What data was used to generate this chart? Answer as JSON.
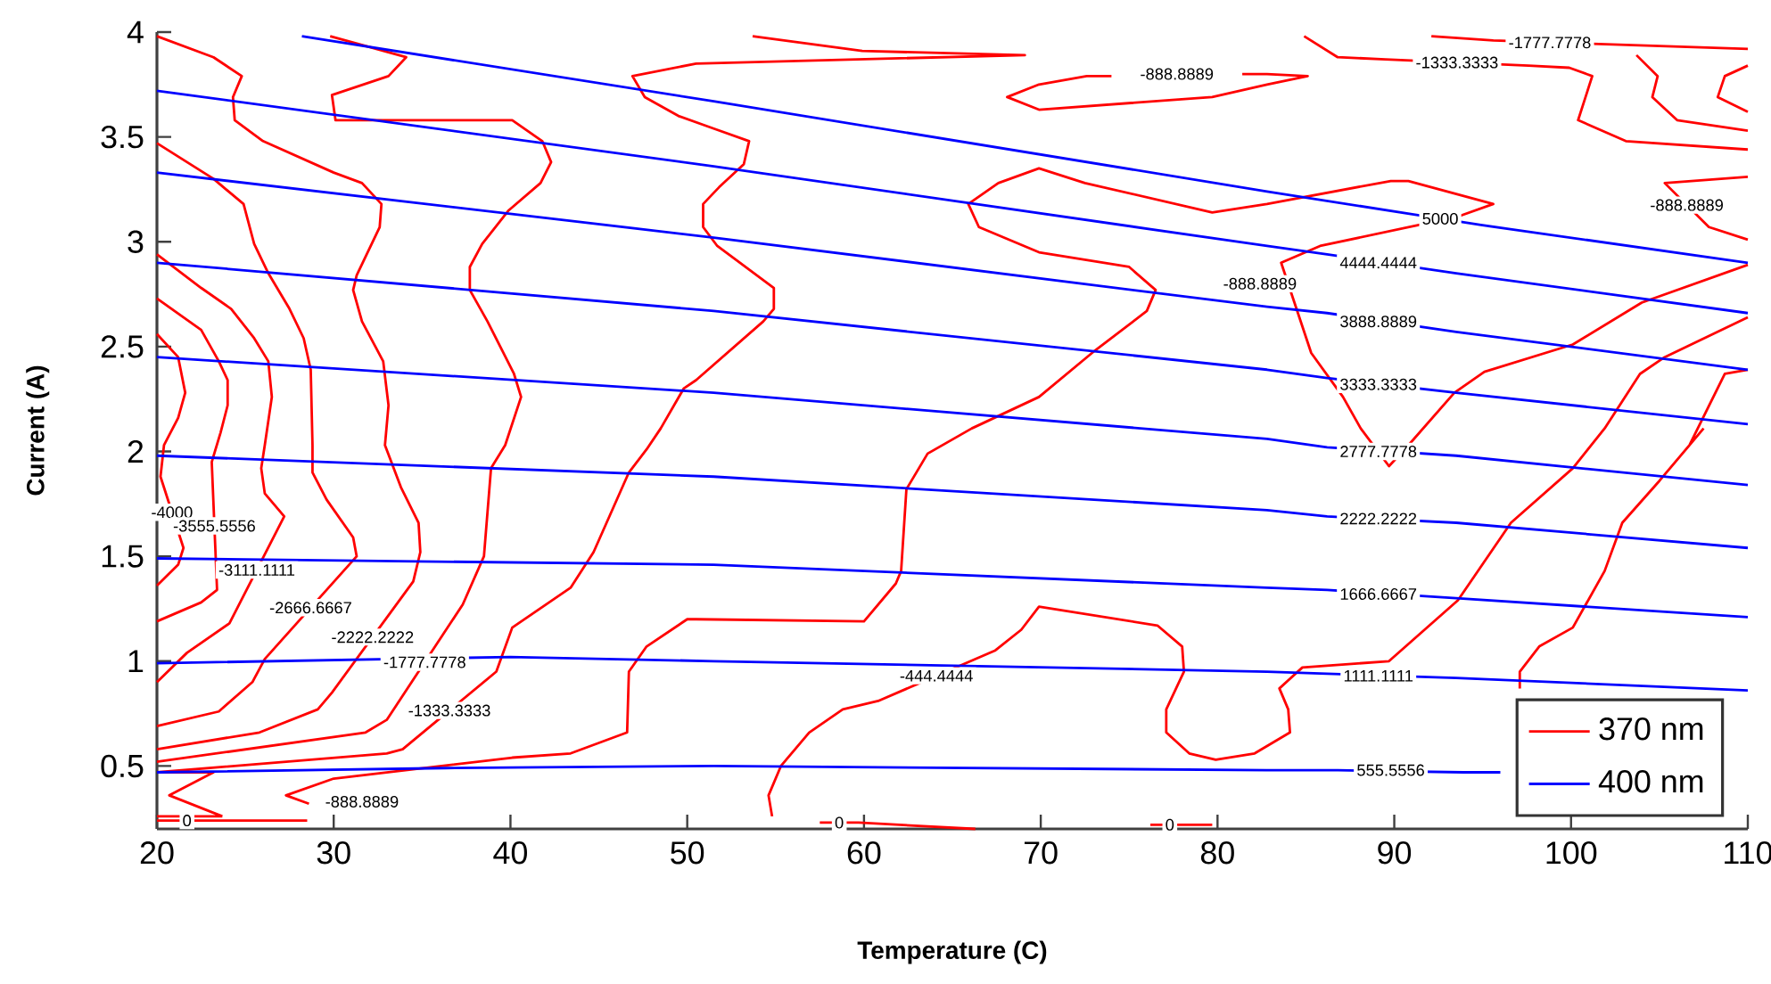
{
  "chart_data": {
    "type": "line",
    "xlabel": "Temperature (C)",
    "ylabel": "Current (A)",
    "xlim": [
      20,
      110
    ],
    "ylim": [
      0.2,
      4
    ],
    "xticks": [
      20,
      30,
      40,
      50,
      60,
      70,
      80,
      90,
      100,
      110
    ],
    "yticks": [
      0.5,
      1,
      1.5,
      2,
      2.5,
      3,
      3.5,
      4
    ],
    "legend": "bottom right",
    "marker": "none",
    "line_style": "solid",
    "grid": false,
    "series": [
      {
        "name": "370 nm",
        "color": "#ff0000",
        "x": [
          20.0,
          21.2,
          21.6,
          21.2,
          20.4,
          20.2,
          21.5,
          21.2,
          20.0,
          null,
          20.0,
          22.5,
          23.5,
          24.0,
          24.0,
          23.6,
          23.1,
          23.4,
          22.5,
          20.0,
          null,
          20.0,
          22.5,
          24.2,
          25.5,
          26.3,
          26.5,
          26.1,
          25.9,
          26.1,
          27.2,
          24.1,
          21.7,
          20.0,
          null,
          20.0,
          23.2,
          24.9,
          25.5,
          26.3,
          27.5,
          28.3,
          28.7,
          28.8,
          28.8,
          29.6,
          31.1,
          31.3,
          26.1,
          25.4,
          23.5,
          20.0,
          null,
          20.0,
          23.2,
          24.8,
          24.3,
          24.4,
          26.0,
          30.0,
          31.6,
          32.7,
          32.6,
          31.3,
          31.1,
          31.6,
          32.8,
          33.1,
          32.9,
          33.8,
          34.8,
          34.9,
          34.5,
          29.9,
          29.1,
          25.8,
          20.0,
          null,
          29.8,
          34.1,
          33.1,
          29.9,
          30.1,
          40.1,
          41.8,
          42.3,
          41.7,
          39.9,
          38.4,
          37.7,
          37.7,
          38.7,
          40.2,
          40.6,
          39.7,
          38.9,
          38.5,
          37.3,
          33.0,
          31.8,
          20.0,
          null,
          53.7,
          59.9,
          69.1,
          50.5,
          46.9,
          47.6,
          49.5,
          51.5,
          53.5,
          53.2,
          51.8,
          50.9,
          50.9,
          51.7,
          54.9,
          54.9,
          54.3,
          50.5,
          49.8,
          48.5,
          47.7,
          46.7,
          44.7,
          43.4,
          40.1,
          39.2,
          33.9,
          33.0,
          20.0,
          null,
          74.0,
          72.6,
          69.9,
          68.1,
          69.9,
          79.7,
          82.8,
          85.1,
          82.8,
          81.4,
          null,
          84.9,
          86.8,
          89.5,
          97.6,
          99.9,
          101.2,
          100.4,
          103.1,
          110.0,
          null,
          92.1,
          95.6,
          110.0,
          null,
          103.7,
          104.9,
          104.6,
          106.0,
          110.0,
          null,
          110.0,
          108.7,
          108.3,
          110.0,
          null,
          110.0,
          105.3,
          107.8,
          110.0,
          null,
          110.0,
          104.0,
          100.1,
          95.1,
          93.4,
          90.8,
          89.7,
          88.1,
          87.1,
          85.3,
          83.6,
          85.8,
          93.6,
          95.6,
          90.8,
          89.8,
          82.8,
          79.7,
          72.5,
          69.9,
          67.6,
          65.9,
          66.5,
          69.9,
          75.0,
          76.5,
          76.0,
          72.9,
          69.9,
          66.1,
          63.6,
          62.4,
          62.1,
          61.8,
          60.0,
          50.5,
          50.0,
          47.7,
          46.7,
          46.6,
          43.4,
          40.1,
          30.0,
          27.3,
          28.6,
          null,
          20.0,
          23.2,
          20.7,
          23.7,
          null,
          54.8,
          54.6,
          55.3,
          56.9,
          58.8,
          60.8,
          67.4,
          68.9,
          69.9,
          76.6,
          78.0,
          78.1,
          77.1,
          77.1,
          78.4,
          79.9,
          82.1,
          84.1,
          84.0,
          83.5,
          84.8,
          89.7,
          93.6,
          96.6,
          100.1,
          101.9,
          103.9,
          105.3,
          110.0,
          null,
          107.5,
          105.0,
          102.9,
          101.9,
          100.1,
          98.2,
          97.1,
          97.1,
          null,
          106.7,
          108.7,
          110.0,
          null,
          57.5,
          59.7,
          66.3,
          null,
          76.2,
          79.7,
          null,
          20.0,
          23.7,
          null,
          20.0,
          28.5
        ],
        "values": [
          2.56,
          2.45,
          2.28,
          2.16,
          2.03,
          1.88,
          1.54,
          1.46,
          1.36,
          null,
          2.73,
          2.58,
          2.43,
          2.34,
          2.22,
          2.09,
          1.95,
          1.34,
          1.28,
          1.19,
          null,
          2.94,
          2.78,
          2.68,
          2.54,
          2.43,
          2.26,
          2.03,
          1.92,
          1.8,
          1.69,
          1.18,
          1.04,
          0.9,
          null,
          3.47,
          3.3,
          3.18,
          2.99,
          2.85,
          2.68,
          2.54,
          2.39,
          2.03,
          1.9,
          1.77,
          1.59,
          1.5,
          1.01,
          0.9,
          0.76,
          0.69,
          null,
          3.98,
          3.88,
          3.79,
          3.69,
          3.58,
          3.48,
          3.33,
          3.28,
          3.18,
          3.07,
          2.84,
          2.77,
          2.62,
          2.43,
          2.22,
          2.03,
          1.83,
          1.66,
          1.52,
          1.38,
          0.85,
          0.77,
          0.66,
          0.58,
          null,
          3.98,
          3.88,
          3.79,
          3.7,
          3.58,
          3.58,
          3.48,
          3.38,
          3.28,
          3.15,
          2.99,
          2.88,
          2.77,
          2.62,
          2.37,
          2.26,
          2.03,
          1.92,
          1.5,
          1.27,
          0.72,
          0.66,
          0.52,
          null,
          3.98,
          3.91,
          3.89,
          3.85,
          3.79,
          3.69,
          3.6,
          3.54,
          3.48,
          3.37,
          3.26,
          3.18,
          3.07,
          2.98,
          2.78,
          2.68,
          2.62,
          2.34,
          2.3,
          2.11,
          2.01,
          1.9,
          1.52,
          1.35,
          1.16,
          0.95,
          0.58,
          0.56,
          0.47,
          null,
          3.79,
          3.79,
          3.75,
          3.69,
          3.63,
          3.69,
          3.75,
          3.79,
          3.8,
          3.8,
          null,
          3.98,
          3.88,
          3.87,
          3.84,
          3.83,
          3.79,
          3.58,
          3.48,
          3.44,
          null,
          3.98,
          3.96,
          3.92,
          null,
          3.89,
          3.79,
          3.69,
          3.58,
          3.53,
          null,
          3.84,
          3.79,
          3.69,
          3.62,
          null,
          3.31,
          3.28,
          3.07,
          3.01,
          null,
          2.89,
          2.71,
          2.51,
          2.38,
          2.28,
          2.03,
          1.93,
          2.11,
          2.26,
          2.47,
          2.9,
          2.98,
          3.12,
          3.18,
          3.29,
          3.29,
          3.18,
          3.14,
          3.28,
          3.35,
          3.28,
          3.18,
          3.07,
          2.95,
          2.88,
          2.77,
          2.67,
          2.47,
          2.26,
          2.11,
          1.99,
          1.82,
          1.43,
          1.37,
          1.19,
          1.2,
          1.2,
          1.07,
          0.95,
          0.66,
          0.56,
          0.54,
          0.44,
          0.36,
          0.32,
          null,
          0.47,
          0.47,
          0.36,
          0.26,
          null,
          0.26,
          0.36,
          0.5,
          0.66,
          0.77,
          0.81,
          1.05,
          1.15,
          1.26,
          1.17,
          1.07,
          0.95,
          0.77,
          0.66,
          0.56,
          0.53,
          0.56,
          0.66,
          0.77,
          0.87,
          0.97,
          1.0,
          1.29,
          1.66,
          1.92,
          2.11,
          2.37,
          2.45,
          2.64,
          null,
          2.11,
          1.86,
          1.66,
          1.43,
          1.16,
          1.07,
          0.95,
          0.87,
          null,
          2.03,
          2.37,
          2.39,
          null,
          0.23,
          0.23,
          0.2,
          null,
          0.22,
          0.22,
          null,
          0.26,
          0.26,
          null,
          0.24,
          0.24
        ]
      },
      {
        "name": "400 nm",
        "color": "#0000ff",
        "x": [
          28.2,
          51.5,
          82.8,
          91.1,
          94.9,
          110.0
        ],
        "values": [
          3.98,
          3.67,
          3.24,
          3.13,
          3.08,
          2.9
        ]
      },
      {
        "color": "#0000ff",
        "x": [
          20.0,
          51.5,
          82.8,
          86.2,
          93.5,
          110.0
        ],
        "values": [
          3.72,
          3.36,
          2.98,
          2.94,
          2.85,
          2.66
        ]
      },
      {
        "color": "#0000ff",
        "x": [
          20.0,
          51.5,
          82.8,
          86.2,
          93.5,
          110.0
        ],
        "values": [
          3.33,
          3.02,
          2.69,
          2.66,
          2.57,
          2.39
        ]
      },
      {
        "color": "#0000ff",
        "x": [
          20.0,
          51.5,
          82.8,
          86.2,
          93.5,
          110.0
        ],
        "values": [
          2.9,
          2.67,
          2.39,
          2.35,
          2.28,
          2.13
        ]
      },
      {
        "color": "#0000ff",
        "x": [
          20.0,
          51.5,
          82.8,
          86.2,
          93.5,
          110.0
        ],
        "values": [
          2.45,
          2.28,
          2.06,
          2.02,
          1.98,
          1.84
        ]
      },
      {
        "color": "#0000ff",
        "x": [
          20.0,
          51.5,
          82.8,
          86.2,
          93.5,
          110.0
        ],
        "values": [
          1.98,
          1.88,
          1.72,
          1.69,
          1.66,
          1.54
        ]
      },
      {
        "color": "#0000ff",
        "x": [
          20.0,
          51.5,
          82.8,
          86.2,
          93.5,
          110.0
        ],
        "values": [
          1.49,
          1.46,
          1.35,
          1.34,
          1.3,
          1.21
        ]
      },
      {
        "color": "#0000ff",
        "x": [
          20.0,
          40.0,
          51.5,
          82.8,
          86.2,
          93.5,
          110.0
        ],
        "values": [
          0.99,
          1.02,
          1.0,
          0.95,
          0.94,
          0.92,
          0.86
        ]
      },
      {
        "color": "#0000ff",
        "x": [
          20.0,
          36.3,
          51.5,
          82.8,
          86.8,
          93.9,
          96.0
        ],
        "values": [
          0.47,
          0.49,
          0.5,
          0.48,
          0.48,
          0.47,
          0.47
        ]
      }
    ],
    "annotations": [
      {
        "text": "-4000",
        "x": 20.85,
        "y": 1.71
      },
      {
        "text": "-3555.5556",
        "x": 23.25,
        "y": 1.645
      },
      {
        "text": "-3111.1111",
        "x": 25.65,
        "y": 1.435
      },
      {
        "text": "-2666.6667",
        "x": 28.7,
        "y": 1.255
      },
      {
        "text": "-2222.2222",
        "x": 32.2,
        "y": 1.115
      },
      {
        "text": "-1777.7778",
        "x": 35.15,
        "y": 0.995
      },
      {
        "text": "-1333.3333",
        "x": 36.55,
        "y": 0.765
      },
      "-888.8889",
      {
        "text": "-444.4444",
        "x": 64.1,
        "y": 0.93
      },
      {
        "text": "0",
        "x": 21.7,
        "y": 0.24
      },
      {
        "text": "0",
        "x": 58.6,
        "y": 0.23
      },
      {
        "text": "0",
        "x": 77.3,
        "y": 0.22
      },
      "-888.8889",
      {
        "text": "-1333.3333",
        "x": 93.55,
        "y": 3.855
      },
      {
        "text": "-1777.7778",
        "x": 98.8,
        "y": 3.95
      },
      {
        "text": "-888.8889",
        "x": 106.55,
        "y": 3.175
      },
      "-888.8889",
      {
        "text": "5000",
        "x": 92.6,
        "y": 3.11
      },
      {
        "text": "4444.4444",
        "x": 89.1,
        "y": 2.9
      },
      {
        "text": "3888.8889",
        "x": 89.1,
        "y": 2.62
      },
      {
        "text": "3333.3333",
        "x": 89.1,
        "y": 2.32
      },
      {
        "text": "2777.7778",
        "x": 89.1,
        "y": 2.0
      },
      {
        "text": "2222.2222",
        "x": 89.1,
        "y": 1.68
      },
      {
        "text": "1666.6667",
        "x": 89.1,
        "y": 1.32
      },
      {
        "text": "1111.1111",
        "x": 89.1,
        "y": 0.93
      },
      {
        "text": "555.5556",
        "x": 89.8,
        "y": 0.48
      }
    ]
  }
}
